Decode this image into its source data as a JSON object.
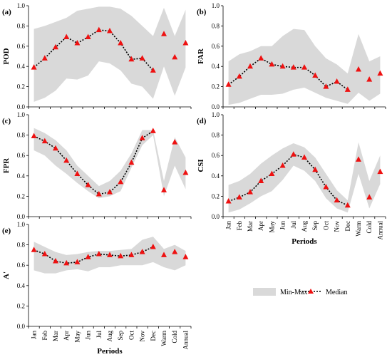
{
  "chart_data": [
    {
      "type": "line",
      "panel_label": "(a)",
      "ylabel": "POD",
      "xlabel": "",
      "ylim": [
        0,
        1
      ],
      "yticks": [
        "0.0",
        "0.2",
        "0.4",
        "0.6",
        "0.8",
        "1.0"
      ],
      "categories": [
        "Jan",
        "Feb",
        "Mar",
        "Apr",
        "May",
        "Jun",
        "Jul",
        "Aug",
        "Sep",
        "Oct",
        "Nov",
        "Dec",
        "Warm",
        "Cold",
        "Annual"
      ],
      "series": [
        {
          "name": "Min-Max",
          "kind": "band",
          "min": [
            0.05,
            0.09,
            0.16,
            0.28,
            0.27,
            0.31,
            0.45,
            0.43,
            0.36,
            0.23,
            0.2,
            0.08,
            0.4,
            0.11,
            0.39
          ],
          "max": [
            0.77,
            0.8,
            0.84,
            0.88,
            0.95,
            0.97,
            0.99,
            0.99,
            0.97,
            0.9,
            0.8,
            0.7,
            0.98,
            0.7,
            0.96
          ]
        },
        {
          "name": "Median",
          "kind": "median",
          "values": [
            0.39,
            0.48,
            0.59,
            0.69,
            0.63,
            0.69,
            0.76,
            0.75,
            0.63,
            0.47,
            0.48,
            0.36,
            0.72,
            0.49,
            0.63
          ]
        }
      ]
    },
    {
      "type": "line",
      "panel_label": "(b)",
      "ylabel": "FAR",
      "xlabel": "",
      "ylim": [
        0,
        1
      ],
      "yticks": [
        "0.0",
        "0.2",
        "0.4",
        "0.6",
        "0.8",
        "1.0"
      ],
      "categories": [
        "Jan",
        "Feb",
        "Mar",
        "Apr",
        "May",
        "Jun",
        "Jul",
        "Aug",
        "Sep",
        "Oct",
        "Nov",
        "Dec",
        "Warm",
        "Cold",
        "Annual"
      ],
      "series": [
        {
          "name": "Min-Max",
          "kind": "band",
          "min": [
            0.02,
            0.04,
            0.08,
            0.12,
            0.12,
            0.13,
            0.17,
            0.19,
            0.14,
            0.09,
            0.06,
            0.03,
            0.14,
            0.06,
            0.13
          ],
          "max": [
            0.45,
            0.52,
            0.55,
            0.6,
            0.6,
            0.7,
            0.77,
            0.76,
            0.6,
            0.48,
            0.42,
            0.33,
            0.72,
            0.45,
            0.5
          ]
        },
        {
          "name": "Median",
          "kind": "median",
          "values": [
            0.22,
            0.3,
            0.4,
            0.48,
            0.42,
            0.4,
            0.39,
            0.39,
            0.31,
            0.2,
            0.25,
            0.17,
            0.37,
            0.27,
            0.33
          ]
        }
      ]
    },
    {
      "type": "line",
      "panel_label": "(c)",
      "ylabel": "FPR",
      "xlabel": "",
      "ylim": [
        0,
        1
      ],
      "yticks": [
        "0.0",
        "0.2",
        "0.4",
        "0.6",
        "0.8",
        "1.0"
      ],
      "categories": [
        "Jan",
        "Feb",
        "Mar",
        "Apr",
        "May",
        "Jun",
        "Jul",
        "Aug",
        "Sep",
        "Oct",
        "Nov",
        "Dec",
        "Warm",
        "Cold",
        "Annual"
      ],
      "series": [
        {
          "name": "Min-Max",
          "kind": "band",
          "min": [
            0.65,
            0.6,
            0.5,
            0.42,
            0.33,
            0.25,
            0.18,
            0.2,
            0.25,
            0.48,
            0.7,
            0.8,
            0.2,
            0.5,
            0.27
          ],
          "max": [
            0.87,
            0.82,
            0.75,
            0.65,
            0.5,
            0.4,
            0.3,
            0.35,
            0.45,
            0.62,
            0.85,
            0.85,
            0.35,
            0.78,
            0.58
          ]
        },
        {
          "name": "Median",
          "kind": "median",
          "values": [
            0.79,
            0.74,
            0.67,
            0.55,
            0.42,
            0.31,
            0.22,
            0.24,
            0.34,
            0.53,
            0.77,
            0.84,
            0.26,
            0.73,
            0.43
          ]
        }
      ]
    },
    {
      "type": "line",
      "panel_label": "(d)",
      "ylabel": "CSI",
      "xlabel": "Periods",
      "ylim": [
        0,
        1
      ],
      "yticks": [
        "0.0",
        "0.2",
        "0.4",
        "0.6",
        "0.8",
        "1.0"
      ],
      "categories": [
        "Jan",
        "Feb",
        "Mar",
        "Apr",
        "May",
        "Jun",
        "Jul",
        "Aug",
        "Sep",
        "Oct",
        "Nov",
        "Dec",
        "Warm",
        "Cold",
        "Annual"
      ],
      "series": [
        {
          "name": "Min-Max",
          "kind": "band",
          "min": [
            0.04,
            0.07,
            0.13,
            0.2,
            0.25,
            0.36,
            0.5,
            0.45,
            0.35,
            0.18,
            0.08,
            0.04,
            0.42,
            0.08,
            0.32
          ],
          "max": [
            0.31,
            0.35,
            0.42,
            0.52,
            0.6,
            0.67,
            0.72,
            0.68,
            0.58,
            0.42,
            0.26,
            0.16,
            0.73,
            0.35,
            0.6
          ]
        },
        {
          "name": "Median",
          "kind": "median",
          "values": [
            0.15,
            0.19,
            0.24,
            0.35,
            0.42,
            0.5,
            0.61,
            0.58,
            0.46,
            0.29,
            0.16,
            0.11,
            0.56,
            0.19,
            0.44
          ]
        }
      ]
    },
    {
      "type": "line",
      "panel_label": "(e)",
      "ylabel": "A'",
      "xlabel": "Periods",
      "ylim": [
        0,
        1
      ],
      "yticks": [
        "0.0",
        "0.2",
        "0.4",
        "0.6",
        "0.8",
        "1.0"
      ],
      "categories": [
        "Jan",
        "Feb",
        "Mar",
        "Apr",
        "May",
        "Jun",
        "Jul",
        "Aug",
        "Sep",
        "Oct",
        "Nov",
        "Dec",
        "Warm",
        "Cold",
        "Annual"
      ],
      "series": [
        {
          "name": "Min-Max",
          "kind": "band",
          "min": [
            0.55,
            0.52,
            0.52,
            0.55,
            0.56,
            0.54,
            0.58,
            0.58,
            0.6,
            0.6,
            0.6,
            0.63,
            0.58,
            0.55,
            0.6
          ],
          "max": [
            0.83,
            0.78,
            0.73,
            0.7,
            0.71,
            0.73,
            0.74,
            0.74,
            0.75,
            0.76,
            0.85,
            0.88,
            0.76,
            0.8,
            0.74
          ]
        },
        {
          "name": "Median",
          "kind": "median",
          "values": [
            0.75,
            0.71,
            0.64,
            0.62,
            0.63,
            0.68,
            0.71,
            0.7,
            0.69,
            0.7,
            0.73,
            0.78,
            0.7,
            0.73,
            0.68
          ]
        }
      ]
    }
  ],
  "legend": {
    "band_label": "Min-Max",
    "median_label": "Median",
    "band_color": "#d9d9d9",
    "marker_color": "#ee1111",
    "line_color": "#000000"
  }
}
